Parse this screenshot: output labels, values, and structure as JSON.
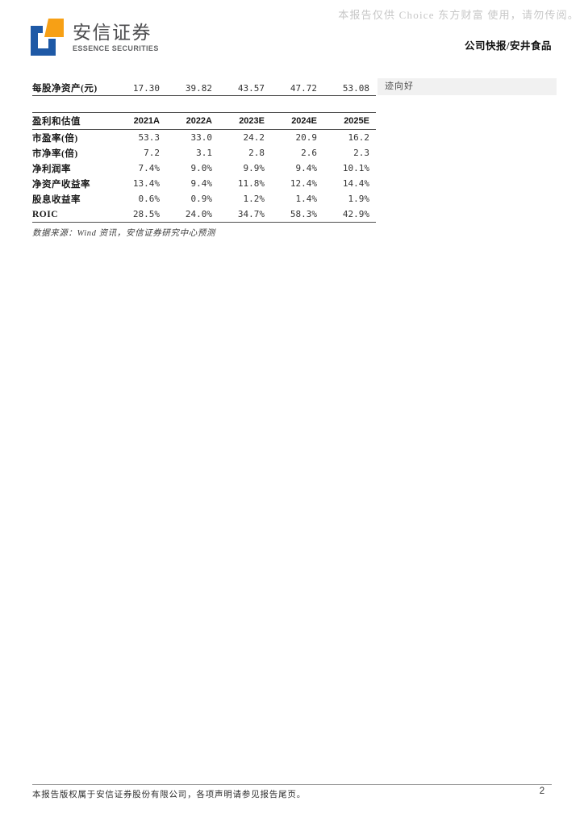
{
  "watermark": "本报告仅供 Choice 东方财富 使用，请勿传阅。",
  "brand": {
    "name_cn": "安信证券",
    "name_en": "ESSENCE SECURITIES",
    "logo_blue": "#1e59a6",
    "logo_orange": "#f7a015"
  },
  "header": {
    "report_type": "公司快报/安井食品"
  },
  "eps_row": {
    "label": "每股净资产(元)",
    "values": [
      "17.30",
      "39.82",
      "43.57",
      "47.72",
      "53.08"
    ]
  },
  "side_note": "迹向好",
  "valuation_table": {
    "header_label": "盈利和估值",
    "columns": [
      "2021A",
      "2022A",
      "2023E",
      "2024E",
      "2025E"
    ],
    "rows": [
      {
        "label": "市盈率(倍)",
        "values": [
          "53.3",
          "33.0",
          "24.2",
          "20.9",
          "16.2"
        ]
      },
      {
        "label": "市净率(倍)",
        "values": [
          "7.2",
          "3.1",
          "2.8",
          "2.6",
          "2.3"
        ]
      },
      {
        "label": "净利润率",
        "values": [
          "7.4%",
          "9.0%",
          "9.9%",
          "9.4%",
          "10.1%"
        ]
      },
      {
        "label": "净资产收益率",
        "values": [
          "13.4%",
          "9.4%",
          "11.8%",
          "12.4%",
          "14.4%"
        ]
      },
      {
        "label": "股息收益率",
        "values": [
          "0.6%",
          "0.9%",
          "1.2%",
          "1.4%",
          "1.9%"
        ]
      },
      {
        "label": "ROIC",
        "values": [
          "28.5%",
          "24.0%",
          "34.7%",
          "58.3%",
          "42.9%"
        ]
      }
    ]
  },
  "source_note": "数据来源：Wind 资讯，安信证券研究中心预测",
  "footer": {
    "disclaimer": "本报告版权属于安信证券股份有限公司，各项声明请参见报告尾页。",
    "page_number": "2"
  }
}
